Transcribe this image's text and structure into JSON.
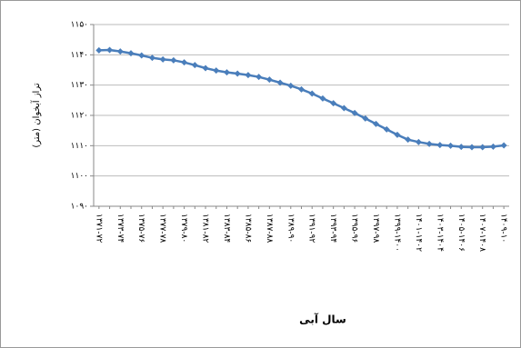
{
  "chart_data": {
    "type": "line",
    "y_label": "تراز آبخوان (متر)",
    "x_label": "سال آبی",
    "categories": [
      "۱۳۷۱-۷۲",
      null,
      "۱۳۷۳-۷۴",
      null,
      "۱۳۷۵-۷۶",
      null,
      "۱۳۷۷-۷۸",
      null,
      "۱۳۷۹-۸۰",
      null,
      "۱۳۸۱-۸۲",
      null,
      "۱۳۸۳-۸۴",
      null,
      "۱۳۸۵-۸۶",
      null,
      "۱۳۸۷-۸۸",
      null,
      "۱۳۸۹-۹۰",
      null,
      "۱۳۹۱-۹۲",
      null,
      "۱۳۹۳-۹۴",
      null,
      "۱۳۹۵-۹۶",
      null,
      "۱۳۹۷-۹۸",
      null,
      "۱۳۹۹-۱۴۰۰",
      null,
      "۱۴۰۱-۱۴۰۲",
      null,
      "۱۴۰۳-۱۴۰۴",
      null,
      "۱۴۰۵-۱۴۰۶",
      null,
      "۱۴۰۷-۱۴۰۸",
      null,
      "۱۴۰۹-۱۰"
    ],
    "values": [
      1141.5,
      1141.6,
      1141.1,
      1140.5,
      1139.8,
      1139.0,
      1138.5,
      1138.2,
      1137.5,
      1136.6,
      1135.6,
      1134.8,
      1134.2,
      1133.8,
      1133.3,
      1132.7,
      1131.8,
      1130.8,
      1129.8,
      1128.6,
      1127.2,
      1125.6,
      1124.0,
      1122.4,
      1120.8,
      1119.0,
      1117.2,
      1115.4,
      1113.6,
      1112.0,
      1111.2,
      1110.6,
      1110.2,
      1110.0,
      1109.6,
      1109.5,
      1109.5,
      1109.7,
      1110.1
    ],
    "color": "#4a7ebb",
    "ylim": [
      1090,
      1150
    ],
    "yticks": [
      {
        "value": 1090,
        "label": "۱۰۹۰"
      },
      {
        "value": 1100,
        "label": "۱۱۰۰"
      },
      {
        "value": 1110,
        "label": "۱۱۱۰"
      },
      {
        "value": 1120,
        "label": "۱۱۲۰"
      },
      {
        "value": 1130,
        "label": "۱۱۳۰"
      },
      {
        "value": 1140,
        "label": "۱۱۴۰"
      },
      {
        "value": 1150,
        "label": "۱۱۵۰"
      }
    ],
    "grid": true
  }
}
